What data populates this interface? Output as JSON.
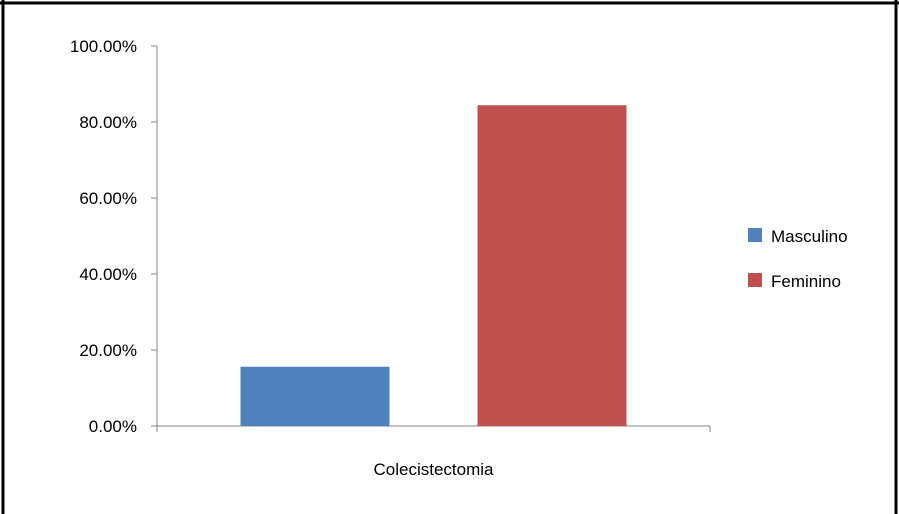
{
  "chart_data": {
    "type": "bar",
    "title": "",
    "xlabel": "",
    "ylabel": "",
    "categories": [
      "Colecistectomia"
    ],
    "series": [
      {
        "name": "Masculino",
        "values": [
          15.6
        ],
        "color": "#4F81BD"
      },
      {
        "name": "Feminino",
        "values": [
          84.4
        ],
        "color": "#C0504D"
      }
    ],
    "ylim": [
      0,
      100
    ],
    "y_ticks": [
      0,
      20,
      40,
      60,
      80,
      100
    ],
    "y_tick_labels": [
      "0.00%",
      "20.00%",
      "40.00%",
      "60.00%",
      "80.00%",
      "100.00%"
    ],
    "grid": false,
    "legend": "right"
  }
}
